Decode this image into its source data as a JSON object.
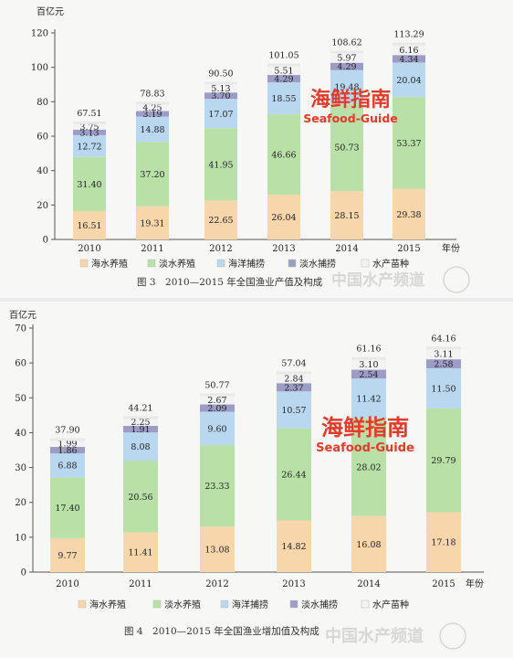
{
  "colors": {
    "海水养殖": "#f6d6aa",
    "淡水养殖": "#b8e0a7",
    "海洋捕捞": "#b9d8ef",
    "淡水捕捞": "#9c9cc7",
    "水产苗种": "#f3f3f3",
    "watermark_red": "#e23a2b"
  },
  "watermark": {
    "cn": "海鲜指南",
    "en": "Seafood-Guide",
    "logo_cn": "中国水产频道"
  },
  "chart_data": [
    {
      "type": "bar",
      "stacked": true,
      "title": "图 3　2010—2015 年全国渔业产值及构成",
      "y_unit": "百亿元",
      "x_unit": "年份",
      "ylim": [
        0,
        120
      ],
      "yticks": [
        0,
        20,
        40,
        60,
        80,
        100,
        120
      ],
      "categories": [
        "2010",
        "2011",
        "2012",
        "2013",
        "2014",
        "2015"
      ],
      "totals": [
        "67.51",
        "78.83",
        "90.50",
        "101.05",
        "108.62",
        "113.29"
      ],
      "series": [
        {
          "name": "海水养殖",
          "values": [
            16.51,
            19.31,
            22.65,
            26.04,
            28.15,
            29.38
          ],
          "labels": [
            "16.51",
            "19.31",
            "22.65",
            "26.04",
            "28.15",
            "29.38"
          ]
        },
        {
          "name": "淡水养殖",
          "values": [
            31.4,
            37.2,
            41.95,
            46.66,
            50.73,
            53.37
          ],
          "labels": [
            "31.40",
            "37.20",
            "41.95",
            "46.66",
            "50.73",
            "53.37"
          ]
        },
        {
          "name": "海洋捕捞",
          "values": [
            12.72,
            14.88,
            17.07,
            18.55,
            19.48,
            20.04
          ],
          "labels": [
            "12.72",
            "14.88",
            "17.07",
            "18.55",
            "19.48",
            "20.04"
          ]
        },
        {
          "name": "淡水捕捞",
          "values": [
            3.13,
            3.19,
            3.7,
            4.29,
            4.29,
            4.34
          ],
          "labels": [
            "3.13",
            "3.19",
            "3.70",
            "4.29",
            "4.29",
            "4.34"
          ]
        },
        {
          "name": "水产苗种",
          "values": [
            3.75,
            4.25,
            5.13,
            5.51,
            5.97,
            6.16
          ],
          "labels": [
            "3.75",
            "4.25",
            "5.13",
            "5.51",
            "5.97",
            "6.16"
          ]
        }
      ]
    },
    {
      "type": "bar",
      "stacked": true,
      "title": "图 4　2010—2015 年全国渔业增加值及构成",
      "y_unit": "百亿元",
      "x_unit": "年份",
      "ylim": [
        0,
        70
      ],
      "yticks": [
        0,
        10,
        20,
        30,
        40,
        50,
        60,
        70
      ],
      "categories": [
        "2010",
        "2011",
        "2012",
        "2013",
        "2014",
        "2015"
      ],
      "totals": [
        "37.90",
        "44.21",
        "50.77",
        "57.04",
        "61.16",
        "64.16"
      ],
      "series": [
        {
          "name": "海水养殖",
          "values": [
            9.77,
            11.41,
            13.08,
            14.82,
            16.08,
            17.18
          ],
          "labels": [
            "9.77",
            "11.41",
            "13.08",
            "14.82",
            "16.08",
            "17.18"
          ]
        },
        {
          "name": "淡水养殖",
          "values": [
            17.4,
            20.56,
            23.33,
            26.44,
            28.02,
            29.79
          ],
          "labels": [
            "17.40",
            "20.56",
            "23.33",
            "26.44",
            "28.02",
            "29.79"
          ]
        },
        {
          "name": "海洋捕捞",
          "values": [
            6.88,
            8.08,
            9.6,
            10.57,
            11.42,
            11.5
          ],
          "labels": [
            "6.88",
            "8.08",
            "9.60",
            "10.57",
            "11.42",
            "11.50"
          ]
        },
        {
          "name": "淡水捕捞",
          "values": [
            1.86,
            1.91,
            2.09,
            2.37,
            2.54,
            2.58
          ],
          "labels": [
            "1.86",
            "1.91",
            "2.09",
            "2.37",
            "2.54",
            "2.58"
          ]
        },
        {
          "name": "水产苗种",
          "values": [
            1.99,
            2.25,
            2.67,
            2.84,
            3.1,
            3.11
          ],
          "labels": [
            "1.99",
            "2.25",
            "2.67",
            "2.84",
            "3.10",
            "3.11"
          ]
        }
      ]
    }
  ]
}
